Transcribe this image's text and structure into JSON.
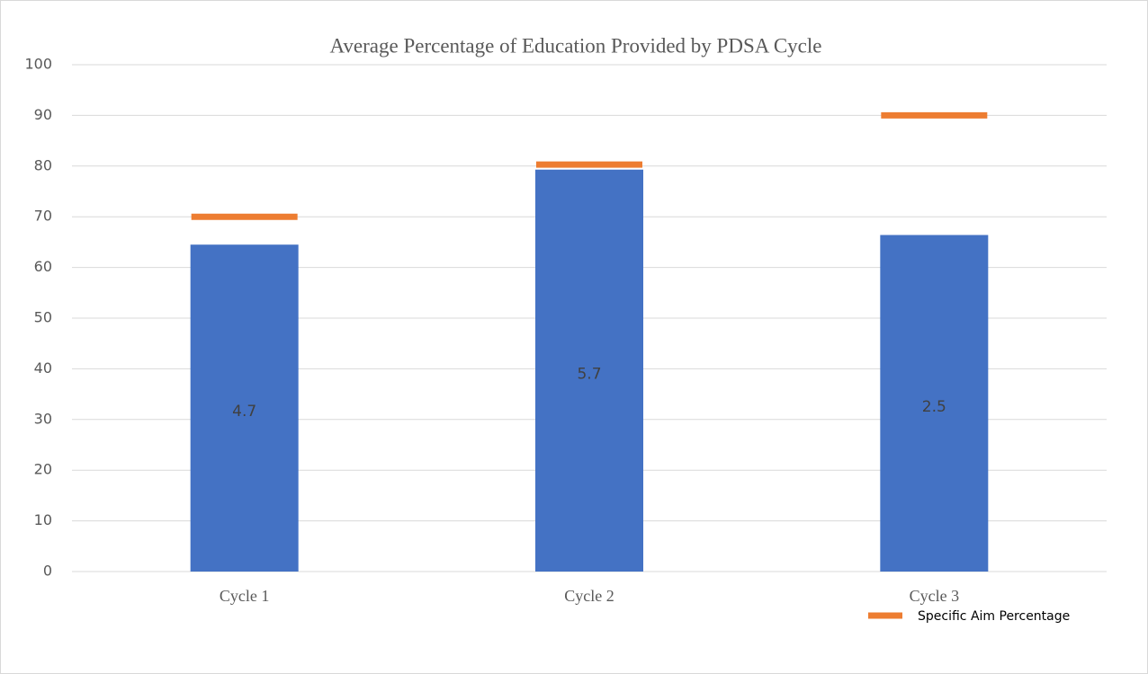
{
  "chart_data": {
    "type": "bar",
    "title": "Average Percentage of Education Provided by PDSA Cycle",
    "categories": [
      "Cycle 1",
      "Cycle 2",
      "Cycle 3"
    ],
    "series": [
      {
        "color": "#4472c4",
        "values": [
          64.5,
          79.3,
          66.4
        ],
        "annotations": [
          "4.7",
          "5.7",
          "2.5"
        ]
      },
      {
        "name": "Specific Aim Percentage",
        "color": "#ed7d31",
        "values": [
          70,
          80.3,
          90
        ],
        "marker": "dash"
      }
    ],
    "ylim": [
      0,
      100
    ],
    "yticks": [
      0,
      10,
      20,
      30,
      40,
      50,
      60,
      70,
      80,
      90,
      100
    ],
    "grid": true,
    "legend": "bottom-right"
  }
}
